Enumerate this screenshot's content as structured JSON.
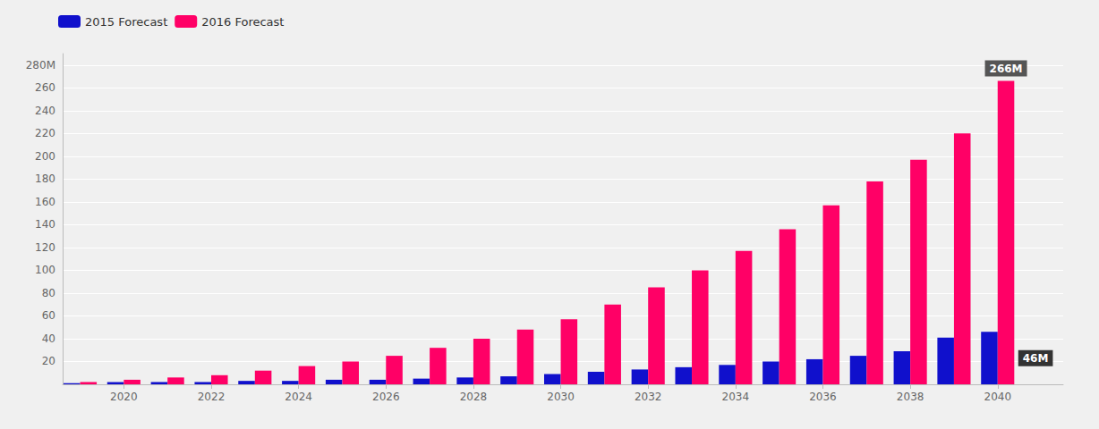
{
  "chart_data": {
    "type": "bar",
    "x": [
      2019,
      2020,
      2021,
      2022,
      2023,
      2024,
      2025,
      2026,
      2027,
      2028,
      2029,
      2030,
      2031,
      2032,
      2033,
      2034,
      2035,
      2036,
      2037,
      2038,
      2039,
      2040
    ],
    "series": [
      {
        "name": "2015 Forecast",
        "color": "#1010cc",
        "values": [
          1,
          2,
          2,
          2,
          3,
          3,
          4,
          4,
          5,
          6,
          7,
          9,
          11,
          13,
          15,
          17,
          20,
          22,
          25,
          29,
          41,
          46
        ]
      },
      {
        "name": "2016 Forecast",
        "color": "#ff0066",
        "values": [
          2,
          4,
          6,
          8,
          12,
          16,
          20,
          25,
          32,
          40,
          48,
          57,
          70,
          85,
          100,
          117,
          136,
          157,
          178,
          197,
          220,
          266
        ]
      }
    ],
    "xlim": [
      2018.6,
      2041.5
    ],
    "xticks": [
      2020,
      2022,
      2024,
      2026,
      2028,
      2030,
      2032,
      2034,
      2036,
      2038,
      2040
    ],
    "ylim": [
      0,
      290
    ],
    "yticks": [
      20,
      40,
      60,
      80,
      100,
      120,
      140,
      160,
      180,
      200,
      220,
      240,
      260,
      {
        "value": 280,
        "label": "280M"
      }
    ],
    "grid": true,
    "legend": "upper left",
    "annotations": [
      {
        "text": "266M",
        "x": 2040,
        "y": 266,
        "series": "2016 Forecast"
      },
      {
        "text": "46M",
        "x": 2040,
        "y": 46,
        "series": "2015 Forecast"
      }
    ]
  }
}
